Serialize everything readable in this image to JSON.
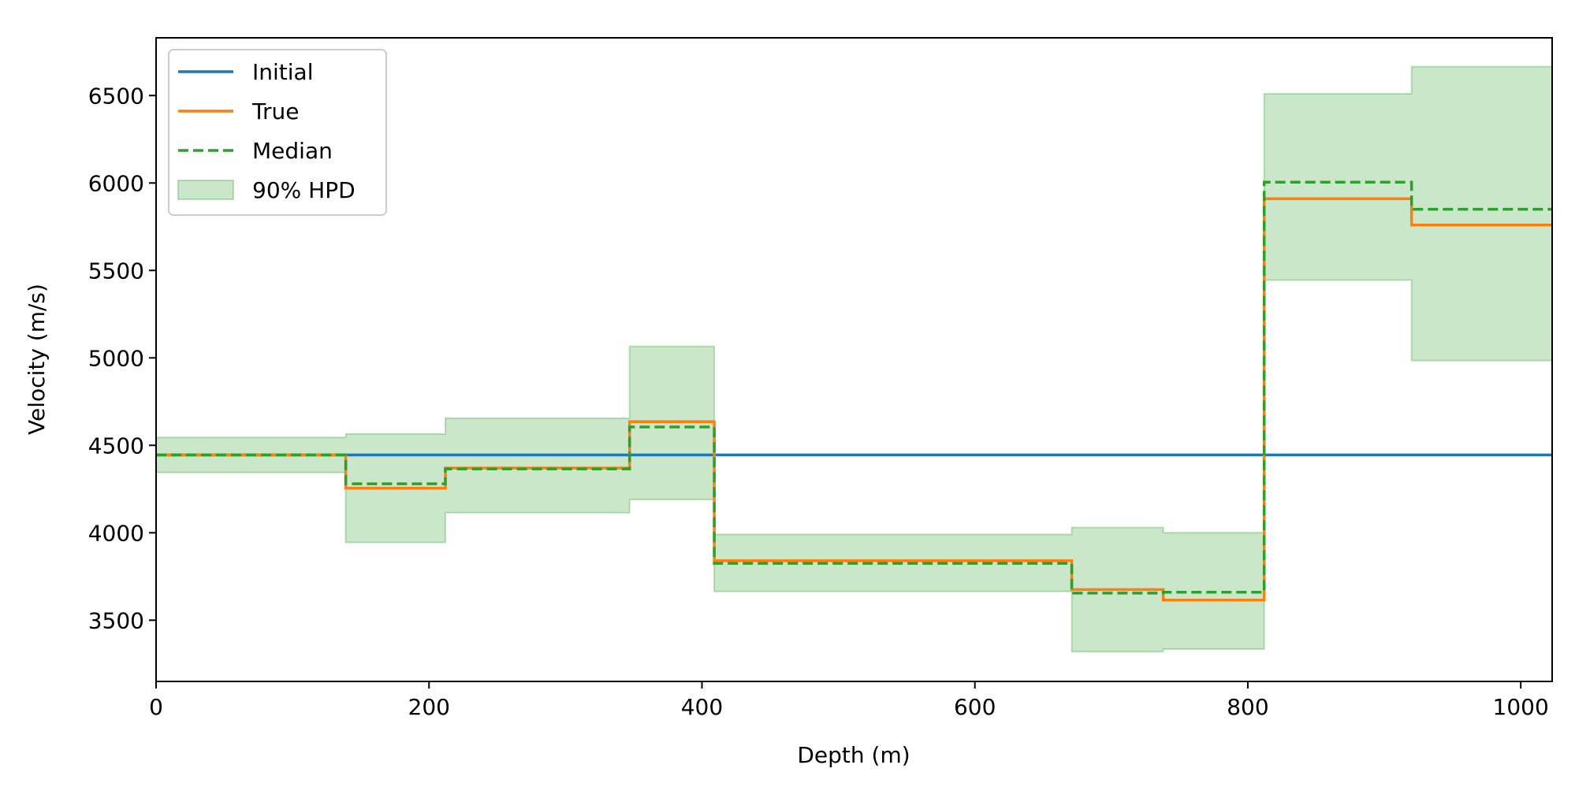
{
  "chart_data": {
    "type": "line",
    "title": "",
    "xlabel": "Depth (m)",
    "ylabel": "Velocity (m/s)",
    "xlim": [
      0,
      1023
    ],
    "ylim": [
      3150,
      6830
    ],
    "xticks": [
      0,
      200,
      400,
      600,
      800,
      1000
    ],
    "yticks": [
      3500,
      4000,
      4500,
      5000,
      5500,
      6000,
      6500
    ],
    "grid": false,
    "legend_position": "top-left",
    "breakpoints": [
      0,
      139,
      212,
      347,
      409,
      671,
      738,
      812,
      920,
      1023
    ],
    "series": [
      {
        "name": "Initial",
        "style": "solid",
        "color": "#1f77b4",
        "values": [
          4445,
          4445,
          4445,
          4445,
          4445,
          4445,
          4445,
          4445,
          4445
        ]
      },
      {
        "name": "True",
        "style": "solid",
        "color": "#ff7f0e",
        "values": [
          4445,
          4255,
          4370,
          4635,
          3840,
          3675,
          3615,
          5910,
          5760
        ]
      },
      {
        "name": "Median",
        "style": "dashed",
        "color": "#2ca02c",
        "values": [
          4445,
          4280,
          4365,
          4605,
          3825,
          3655,
          3660,
          6005,
          5850
        ]
      }
    ],
    "band": {
      "name": "90% HPD",
      "color": "#2ca02c",
      "lower": [
        4345,
        3945,
        4115,
        4190,
        3665,
        3320,
        3335,
        5445,
        4985
      ],
      "upper": [
        4545,
        4565,
        4655,
        5065,
        3990,
        4030,
        4000,
        6510,
        6665
      ]
    }
  }
}
